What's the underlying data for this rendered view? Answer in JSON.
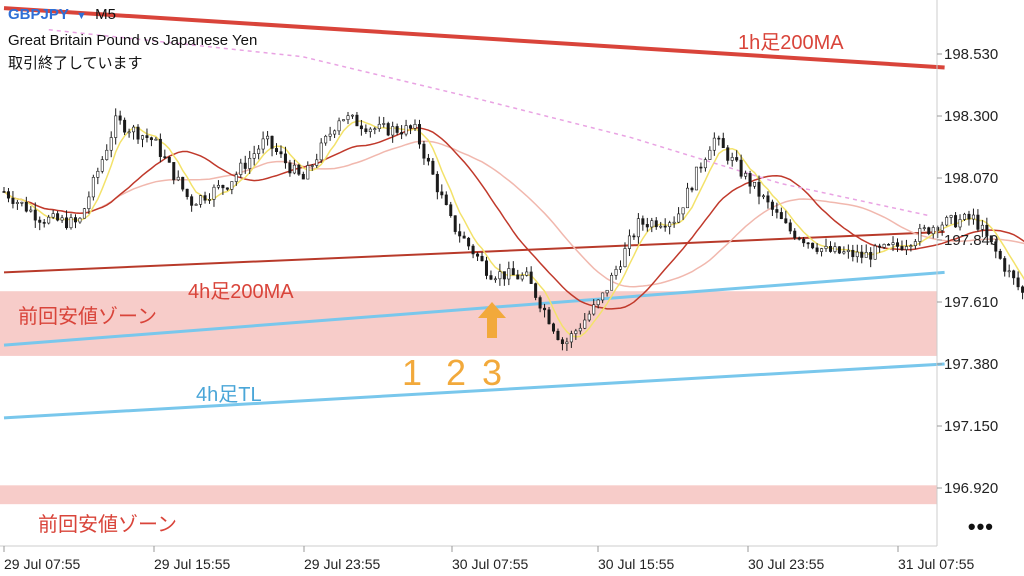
{
  "header": {
    "symbol": "GBPJPY",
    "symbol_dropdown_icon": "triangle-down-icon",
    "timeframe": "M5",
    "description": "Great Britain Pound vs Japanese Yen",
    "status": "取引終了しています"
  },
  "menu": {
    "more_label": "•••",
    "icon": "more-dots-icon"
  },
  "colors": {
    "candle": "#1a1a1a",
    "ma_1h200": "#d9443a",
    "ma_4h200": "#b83a2a",
    "ma_mid": "#c0392b",
    "ma_fast": "#f3e26a",
    "ma_light": "#f1b8ae",
    "ma_dashed": "#e9a3e3",
    "trendline": "#79c7ec",
    "zone_fill": "#f6c7c3",
    "annotation_red": "#d9443a",
    "annotation_blue": "#4aa6d8",
    "annotation_orange": "#f2a93b"
  },
  "annotations": {
    "ma_1h200_label": "1h足200MA",
    "ma_4h200_label": "4h足200MA",
    "zone_upper_label": "前回安値ゾーン",
    "zone_lower_label": "前回安値ゾーン",
    "trendline_label": "4h足TL",
    "count_1": "1",
    "count_2": "2",
    "count_3": "3",
    "arrow_icon": "up-arrow-icon"
  },
  "chart_data": {
    "type": "line",
    "title": "GBPJPY M5",
    "subtitle": "Great Britain Pound vs Japanese Yen",
    "xlabel": "",
    "ylabel": "",
    "grid": false,
    "legend": "none",
    "ylim": [
      196.85,
      198.72
    ],
    "y_ticks": [
      "198.530",
      "198.300",
      "198.070",
      "197.840",
      "197.610",
      "197.380",
      "197.150",
      "196.920"
    ],
    "x_ticks": [
      "29 Jul 07:55",
      "29 Jul 15:55",
      "29 Jul 23:55",
      "30 Jul 07:55",
      "30 Jul 15:55",
      "30 Jul 23:55",
      "31 Jul 07:55"
    ],
    "price_close": [
      [
        0,
        198.02
      ],
      [
        0.25,
        197.92
      ],
      [
        0.5,
        197.9
      ],
      [
        0.75,
        198.28
      ],
      [
        1.0,
        198.21
      ],
      [
        1.25,
        197.98
      ],
      [
        1.5,
        198.05
      ],
      [
        1.75,
        198.21
      ],
      [
        2.0,
        198.06
      ],
      [
        2.25,
        198.3
      ],
      [
        2.5,
        198.25
      ],
      [
        2.75,
        198.25
      ],
      [
        3.0,
        197.9
      ],
      [
        3.25,
        197.72
      ],
      [
        3.5,
        197.7
      ],
      [
        3.75,
        197.45
      ],
      [
        4.0,
        197.62
      ],
      [
        4.25,
        197.9
      ],
      [
        4.5,
        197.92
      ],
      [
        4.75,
        198.22
      ],
      [
        5.0,
        198.05
      ],
      [
        5.25,
        197.88
      ],
      [
        5.5,
        197.8
      ],
      [
        5.75,
        197.78
      ],
      [
        6.0,
        197.82
      ],
      [
        6.25,
        197.9
      ],
      [
        6.5,
        197.92
      ],
      [
        6.75,
        197.7
      ],
      [
        7.0,
        197.5
      ],
      [
        7.25,
        197.25
      ],
      [
        7.5,
        197.42
      ],
      [
        7.75,
        197.62
      ]
    ],
    "series": [
      {
        "name": "1h足200MA",
        "style": "thick",
        "points": [
          [
            0,
            198.7
          ],
          [
            6.3,
            198.48
          ]
        ]
      },
      {
        "name": "4h足200MA",
        "style": "thin",
        "points": [
          [
            0,
            197.72
          ],
          [
            6.3,
            197.87
          ]
        ]
      },
      {
        "name": "4h足TL",
        "style": "trendline",
        "points": [
          [
            0,
            197.18
          ],
          [
            6.3,
            197.38
          ]
        ]
      },
      {
        "name": "",
        "style": "trendline",
        "points": [
          [
            0,
            197.45
          ],
          [
            6.3,
            197.72
          ]
        ]
      }
    ],
    "zones": [
      {
        "name": "前回安値ゾーン",
        "from": 197.41,
        "to": 197.65
      },
      {
        "name": "前回安値ゾーン",
        "from": 196.86,
        "to": 196.93
      }
    ]
  }
}
